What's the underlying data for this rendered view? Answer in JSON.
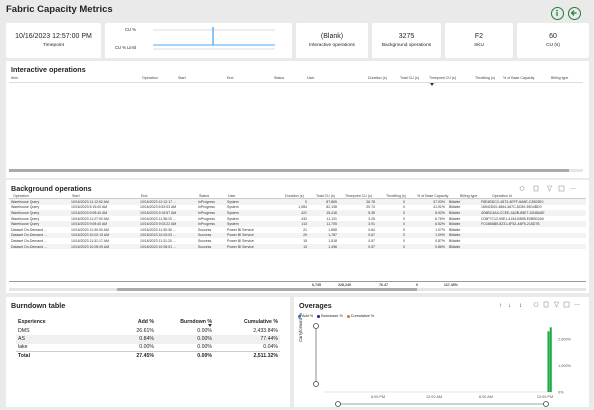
{
  "title": "Fabric Capacity Metrics",
  "cards": {
    "timepoint": {
      "value": "10/16/2023 12:57:00 PM",
      "label": "Timepoint"
    },
    "cu_chart": {
      "cu_label": "CU %",
      "limit_label": "CU % Limit"
    },
    "interactive": {
      "value": "(Blank)",
      "label": "Interactive operations"
    },
    "background": {
      "value": "3275",
      "label": "Background operations"
    },
    "sku": {
      "value": "F2",
      "label": "SKU"
    },
    "cu_s": {
      "value": "60",
      "label": "CU (s)"
    }
  },
  "interactive_ops": {
    "title": "Interactive operations",
    "columns": [
      "Item",
      "Operation",
      "Start",
      "End",
      "Status",
      "User",
      "Duration (s)",
      "Total CU (s)",
      "Timepoint CU (s)",
      "Throttling (s)",
      "% of Base Capacity",
      "Billing type"
    ]
  },
  "background_ops": {
    "title": "Background operations",
    "columns": [
      "Operation",
      "Start",
      "End",
      "Status",
      "User",
      "Duration (s)",
      "Total CU (s)",
      "Timepoint CU (s)",
      "Throttling (s)",
      "% of Base Capacity",
      "Billing type",
      "Operation Id"
    ],
    "rows": [
      [
        "Warehouse Query",
        "10/16/2023 11:12:52 AM",
        "10/16/2023 12:12:17 ...",
        "InProgress",
        "System",
        "0",
        "87,865",
        "26.78",
        "0",
        "37.93%",
        "Billable",
        "F8E4BDCC-6573-4EFF-8A9E-C3503E0"
      ],
      [
        "Warehouse Query",
        "10/16/2023 5:15:00 AM",
        "10/16/2023 5:52:03 AM",
        "InProgress",
        "System",
        "1,984",
        "82,108",
        "20.74",
        "0",
        "41.91%",
        "Billable",
        "16542D00-4864-467C-8C89-39D4BD0"
      ],
      [
        "Warehouse Query",
        "10/16/2023 9:08:40 AM",
        "10/16/2023 9:16:57 AM",
        "InProgress",
        "System",
        "421",
        "15,416",
        "5.35",
        "0",
        "8.92%",
        "Billable",
        "4D6BC4A4-CCEE-4A2B-85E7-4D48A6E"
      ],
      [
        "Warehouse Query",
        "10/16/2023 11:27:00 AM",
        "10/16/2023 11:38:10 ...",
        "InProgress",
        "System",
        "432",
        "11,131",
        "3.25",
        "0",
        "6.76%",
        "Billable",
        "C05F7C12-99E1-4154-B898-E0BB02A0"
      ],
      [
        "Warehouse Query",
        "10/16/2023 9:08:40 AM",
        "10/16/2023 9:03:22 AM",
        "InProgress",
        "System",
        "113",
        "11,705",
        "3.91",
        "0",
        "6.52%",
        "Billable",
        "FC04B6B5-8231-4F52-A6F5-218D7B"
      ],
      [
        "Dataset On-Demand ...",
        "10/16/2023 11:30:00 AM",
        "10/16/2023 11:30:30 ...",
        "Success",
        "Power BI Service",
        "21",
        "1,858",
        "0.64",
        "0",
        "1.07%",
        "Billable",
        ""
      ],
      [
        "Dataset On-Demand ...",
        "10/16/2023 10:02:13 AM",
        "10/16/2023 10:03:03 ...",
        "Success",
        "Power BI Service",
        "29",
        "1,787",
        "0.67",
        "0",
        "1.09%",
        "Billable",
        ""
      ],
      [
        "Dataset On-Demand ...",
        "10/16/2023 11:31:17 AM",
        "10/16/2023 11:31:20 ...",
        "Success",
        "Power BI Service",
        "15",
        "1,518",
        "0.57",
        "0",
        "0.87%",
        "Billable",
        ""
      ],
      [
        "Dataset On-Demand ...",
        "10/16/2023 10:05:05 AM",
        "10/16/2023 10:05:51 ...",
        "Success",
        "Power BI Service",
        "13",
        "1,498",
        "0.57",
        "0",
        "0.86%",
        "Billable",
        ""
      ]
    ],
    "totals": [
      "6,745",
      "228,240",
      "76.47",
      "0",
      "127.45%"
    ]
  },
  "burndown": {
    "title": "Burndown table",
    "columns": [
      "Experience",
      "Add %",
      "Burndown %",
      "Cumulative %"
    ],
    "rows": [
      [
        "DMS",
        "26.61%",
        "0.00%",
        "2,433.84%"
      ],
      [
        "AS",
        "0.84%",
        "0.00%",
        "77.44%"
      ],
      [
        "lake",
        "0.00%",
        "0.00%",
        "0.04%"
      ]
    ],
    "total": [
      "Total",
      "27.45%",
      "0.00%",
      "2,511.32%"
    ]
  },
  "overages": {
    "title": "Overages",
    "legend": [
      "Add %",
      "Burndown %",
      "Cumulative %"
    ],
    "ylabel": "Carryforward %",
    "y_ticks": [
      "2,000%",
      "1,000%",
      "0%"
    ],
    "x_ticks": [
      "6:00 PM",
      "12:00 AM",
      "6:00 AM",
      "12:00 PM"
    ]
  },
  "colors": {
    "accent": "#118dff",
    "add": "#118dff",
    "burndown": "#12239e",
    "cumulative": "#e66c37",
    "overage_bar": "#1aab40"
  },
  "chart_data": {
    "type": "bar",
    "title": "Overages",
    "ylabel": "Carryforward %",
    "x_ticks": [
      "6:00 PM",
      "12:00 AM",
      "6:00 AM",
      "12:00 PM"
    ],
    "ylim": [
      0,
      2500
    ],
    "series": [
      {
        "name": "Add %",
        "values": [
          0,
          0,
          0,
          0,
          0,
          0,
          0,
          0,
          0,
          0,
          0,
          0,
          0,
          0,
          0,
          0,
          0,
          0,
          0,
          0,
          0,
          0,
          0,
          0,
          0,
          0,
          0,
          0,
          0,
          0,
          0,
          0,
          0,
          0,
          0,
          0,
          0,
          0,
          0,
          0,
          0,
          0,
          0,
          0,
          0,
          0,
          0,
          0,
          0,
          0,
          0,
          0,
          0,
          0,
          0,
          0,
          0,
          0,
          0,
          0,
          0,
          0,
          0,
          0,
          0,
          0,
          0,
          0,
          0,
          0,
          0,
          0,
          0,
          0,
          0,
          0,
          0,
          0,
          0,
          0,
          0,
          0,
          0,
          0,
          0,
          0,
          0,
          0,
          0,
          0,
          0,
          0,
          0,
          0,
          0,
          0,
          0,
          0,
          0,
          2300,
          2450
        ]
      }
    ],
    "legend_position": "top-left",
    "grid": false
  }
}
